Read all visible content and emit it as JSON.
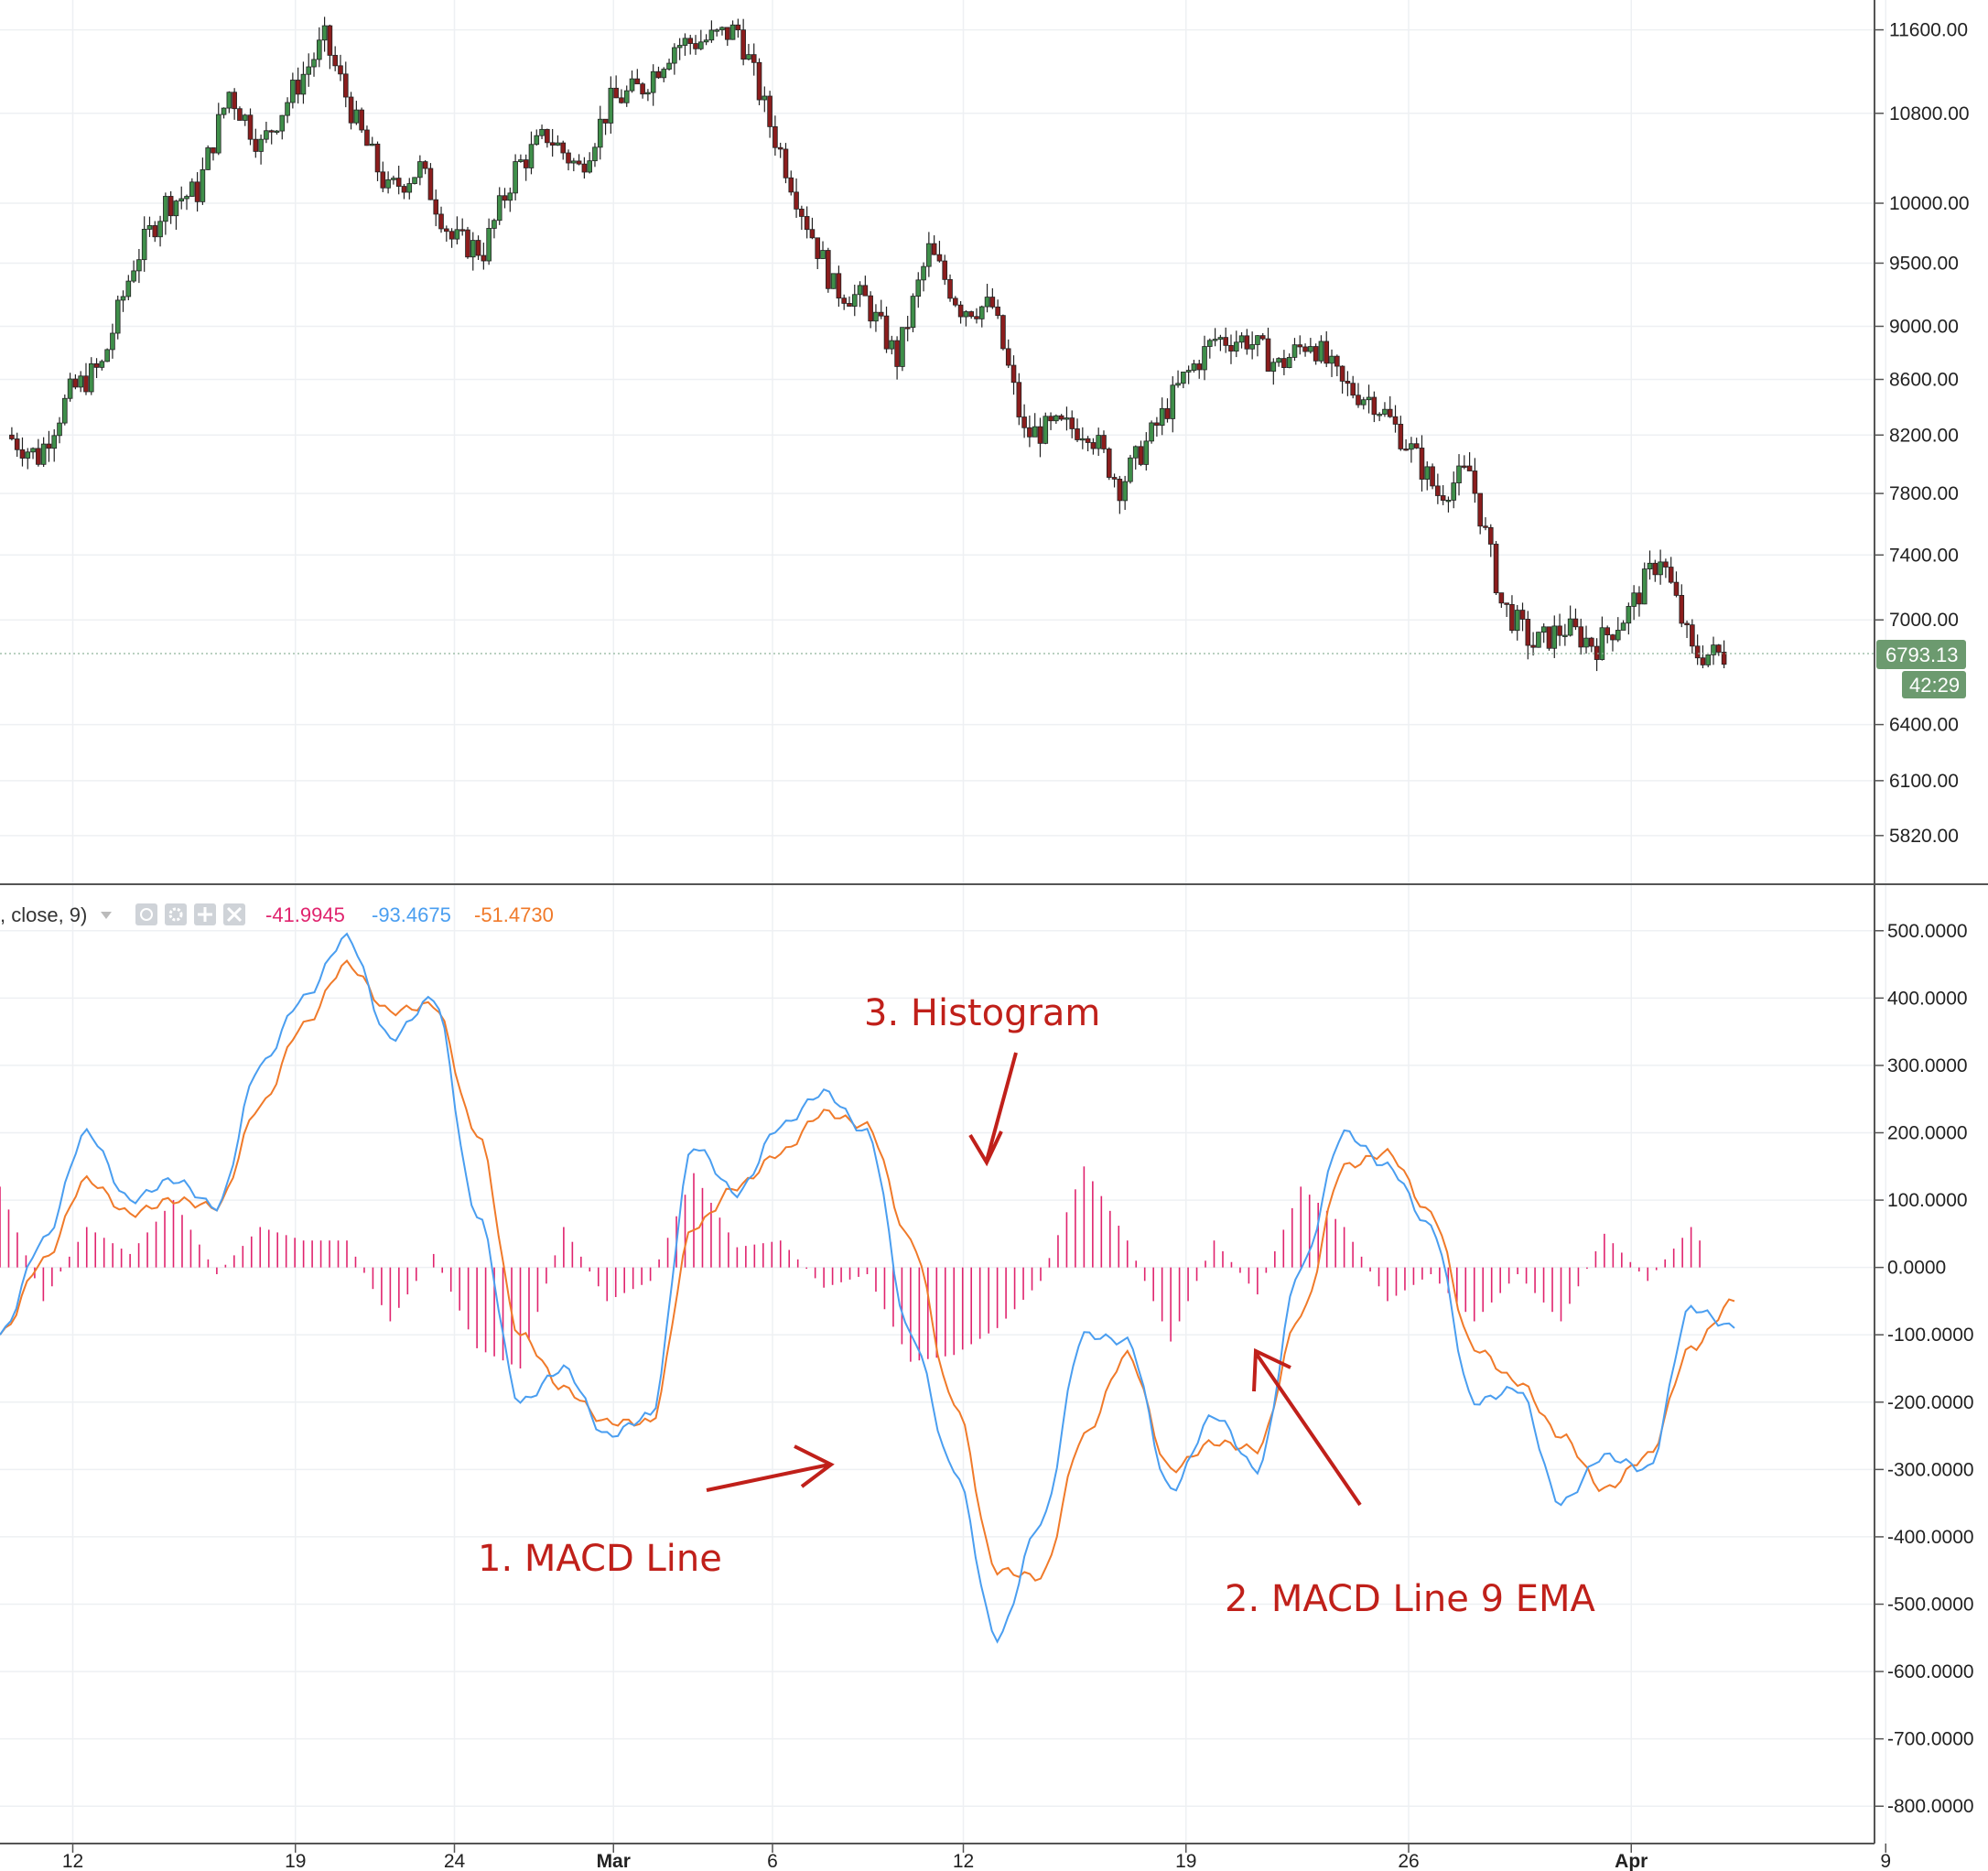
{
  "colors": {
    "up": "#3f8f4a",
    "down": "#8b1d1d",
    "macd": "#4a9ef0",
    "signal": "#f07a2a",
    "hist": "#e0246e",
    "annotation": "#c0201a",
    "badge": "#6c9a6f",
    "grid": "#eef0f3"
  },
  "legend": {
    "prefix": ", close, 9)",
    "hist_value": "-41.9945",
    "macd_value": "-93.4675",
    "signal_value": "-51.4730"
  },
  "price_badge": {
    "price": "6793.13",
    "countdown": "42:29"
  },
  "annotations": {
    "macd_line": "1. MACD Line",
    "signal_line": "2. MACD Line 9 EMA",
    "histogram": "3. Histogram"
  },
  "chart_data": [
    {
      "type": "candlestick",
      "y_scale": "log",
      "ylim": [
        5600,
        11900
      ],
      "yticks": [
        "11600.00",
        "10800.00",
        "10000.00",
        "9500.00",
        "9000.00",
        "8600.00",
        "8200.00",
        "7800.00",
        "7400.00",
        "7000.00",
        "6400.00",
        "6100.00",
        "5820.00"
      ],
      "last_price": 6793.13,
      "grid": true,
      "series_close_approx": [
        {
          "date": "Feb 10",
          "close": 8200
        },
        {
          "date": "Feb 11",
          "close": 8050
        },
        {
          "date": "Feb 12",
          "close": 8500
        },
        {
          "date": "Feb 13",
          "close": 8700
        },
        {
          "date": "Feb 14",
          "close": 9500
        },
        {
          "date": "Feb 15",
          "close": 10000
        },
        {
          "date": "Feb 16",
          "close": 10100
        },
        {
          "date": "Feb 17",
          "close": 11000
        },
        {
          "date": "Feb 18",
          "close": 10500
        },
        {
          "date": "Feb 19",
          "close": 11000
        },
        {
          "date": "Feb 20",
          "close": 11500
        },
        {
          "date": "Feb 21",
          "close": 10700
        },
        {
          "date": "Feb 22",
          "close": 10100
        },
        {
          "date": "Feb 23",
          "close": 10300
        },
        {
          "date": "Feb 24",
          "close": 9700
        },
        {
          "date": "Feb 25",
          "close": 9600
        },
        {
          "date": "Feb 26",
          "close": 10300
        },
        {
          "date": "Feb 27",
          "close": 10600
        },
        {
          "date": "Feb 28",
          "close": 10300
        },
        {
          "date": "Mar 1",
          "close": 10900
        },
        {
          "date": "Mar 2",
          "close": 11050
        },
        {
          "date": "Mar 3",
          "close": 11450
        },
        {
          "date": "Mar 4",
          "close": 11500
        },
        {
          "date": "Mar 5",
          "close": 11600
        },
        {
          "date": "Mar 6",
          "close": 10700
        },
        {
          "date": "Mar 7",
          "close": 9950
        },
        {
          "date": "Mar 8",
          "close": 9300
        },
        {
          "date": "Mar 9",
          "close": 9200
        },
        {
          "date": "Mar 10",
          "close": 8750
        },
        {
          "date": "Mar 11",
          "close": 9600
        },
        {
          "date": "Mar 12",
          "close": 9150
        },
        {
          "date": "Mar 13",
          "close": 9150
        },
        {
          "date": "Mar 14",
          "close": 8200
        },
        {
          "date": "Mar 15",
          "close": 8250
        },
        {
          "date": "Mar 16",
          "close": 8250
        },
        {
          "date": "Mar 17",
          "close": 7850
        },
        {
          "date": "Mar 18",
          "close": 8200
        },
        {
          "date": "Mar 19",
          "close": 8600
        },
        {
          "date": "Mar 20",
          "close": 8900
        },
        {
          "date": "Mar 21",
          "close": 8900
        },
        {
          "date": "Mar 22",
          "close": 8700
        },
        {
          "date": "Mar 23",
          "close": 8900
        },
        {
          "date": "Mar 24",
          "close": 8550
        },
        {
          "date": "Mar 25",
          "close": 8450
        },
        {
          "date": "Mar 26",
          "close": 8150
        },
        {
          "date": "Mar 27",
          "close": 7800
        },
        {
          "date": "Mar 28",
          "close": 7950
        },
        {
          "date": "Mar 29",
          "close": 7100
        },
        {
          "date": "Mar 30",
          "close": 6850
        },
        {
          "date": "Mar 31",
          "close": 6950
        },
        {
          "date": "Apr 1",
          "close": 6850
        },
        {
          "date": "Apr 2",
          "close": 7050
        },
        {
          "date": "Apr 3",
          "close": 7400
        },
        {
          "date": "Apr 4",
          "close": 6800
        },
        {
          "date": "Apr 5",
          "close": 6793.13
        }
      ]
    },
    {
      "type": "line",
      "ylim": [
        -850,
        550
      ],
      "yticks": [
        "500.0000",
        "400.0000",
        "300.0000",
        "200.0000",
        "100.0000",
        "0.0000",
        "-100.0000",
        "-200.0000",
        "-300.0000",
        "-400.0000",
        "-500.0000",
        "-600.0000",
        "-700.0000",
        "-800.0000"
      ],
      "x_ticks": [
        "12",
        "19",
        "24",
        "Mar",
        "6",
        "12",
        "19",
        "26",
        "Apr",
        "9"
      ],
      "grid": true,
      "series": [
        {
          "role": "macd",
          "values": [
            -100,
            40,
            200,
            100,
            130,
            90,
            300,
            400,
            490,
            340,
            400,
            80,
            -200,
            -150,
            -250,
            -220,
            180,
            110,
            210,
            260,
            200,
            -100,
            -300,
            -550,
            -380,
            -100,
            -110,
            -330,
            -220,
            -300,
            0,
            200,
            150,
            60,
            -200,
            -180,
            -350,
            -280,
            -300,
            -60,
            -90
          ]
        },
        {
          "role": "signal",
          "values": [
            -100,
            10,
            130,
            80,
            100,
            90,
            240,
            360,
            450,
            380,
            390,
            200,
            -100,
            -180,
            -230,
            -230,
            60,
            120,
            170,
            230,
            210,
            40,
            -200,
            -450,
            -460,
            -250,
            -130,
            -300,
            -260,
            -270,
            -70,
            150,
            170,
            80,
            -120,
            -170,
            -250,
            -330,
            -280,
            -120,
            -50
          ]
        },
        {
          "role": "histogram",
          "values": [
            120,
            -50,
            60,
            20,
            100,
            -10,
            60,
            40,
            40,
            -80,
            20,
            -120,
            -150,
            60,
            -50,
            -20,
            140,
            30,
            40,
            -30,
            -10,
            -140,
            -130,
            -90,
            -20,
            150,
            40,
            -110,
            40,
            -40,
            120,
            60,
            -50,
            -10,
            -80,
            -10,
            -80,
            50,
            -20,
            60,
            -40
          ]
        }
      ]
    }
  ]
}
